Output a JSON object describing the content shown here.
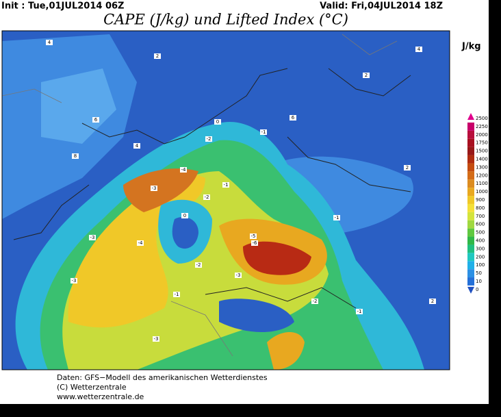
{
  "header": {
    "init": "Init : Tue,01JUL2014 06Z",
    "valid": "Valid: Fri,04JUL2014 18Z",
    "title": "CAPE (J/kg) und Lifted Index (°C)"
  },
  "colorbar": {
    "unit": "J/kg",
    "levels": [
      2500,
      2250,
      2000,
      1750,
      1500,
      1400,
      1300,
      1200,
      1100,
      1000,
      900,
      800,
      700,
      600,
      500,
      400,
      300,
      200,
      100,
      50,
      10,
      0
    ],
    "colors": [
      "#e0008c",
      "#c8006a",
      "#b80f3c",
      "#a81020",
      "#981818",
      "#b02c10",
      "#c44c10",
      "#d46c18",
      "#dc8c20",
      "#e8a820",
      "#f0c828",
      "#f4e038",
      "#d4e43c",
      "#a0d840",
      "#60c840",
      "#30b848",
      "#20c080",
      "#20c8c0",
      "#20b0e8",
      "#2c90e4",
      "#2470d8",
      "#2050c0"
    ]
  },
  "lifted_index_labels": [
    4,
    6,
    2,
    4,
    8,
    -1,
    -2,
    0,
    -4,
    -3,
    -1,
    -3,
    -5,
    -6,
    -3,
    -4,
    -2,
    -3,
    -1,
    -2,
    -1,
    -3,
    2,
    2,
    6,
    4,
    -1,
    -2,
    0,
    2
  ],
  "footer": {
    "source": "Daten: GFS−Modell des amerikanischen Wetterdienstes",
    "copyright": "(C) Wetterzentrale",
    "url": "www.wetterzentrale.de"
  }
}
